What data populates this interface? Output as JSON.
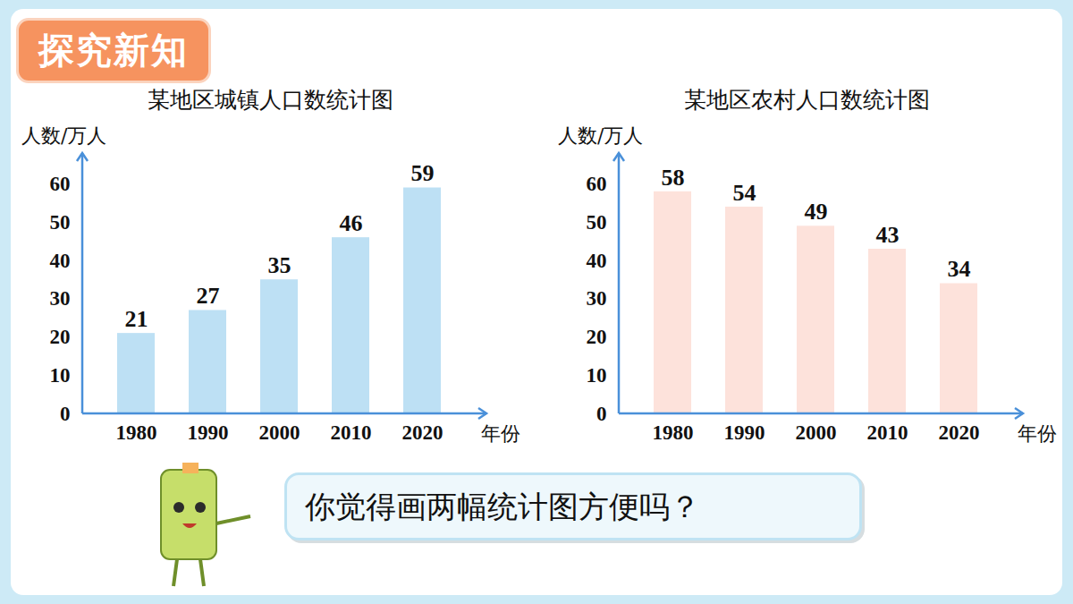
{
  "header": "探究新知",
  "speech": "你觉得画两幅统计图方便吗？",
  "chart_data": [
    {
      "type": "bar",
      "title": "某地区城镇人口数统计图",
      "y_label": "人数/万人",
      "x_label": "年份",
      "categories": [
        "1980",
        "1990",
        "2000",
        "2010",
        "2020"
      ],
      "values": [
        21,
        27,
        35,
        46,
        59
      ],
      "color": "#bde0f4",
      "ylim": [
        0,
        68
      ],
      "yticks": [
        0,
        10,
        20,
        30,
        40,
        50,
        60
      ],
      "grid": false,
      "data_labels": true
    },
    {
      "type": "bar",
      "title": "某地区农村人口数统计图",
      "y_label": "人数/万人",
      "x_label": "年份",
      "categories": [
        "1980",
        "1990",
        "2000",
        "2010",
        "2020"
      ],
      "values": [
        58,
        54,
        49,
        43,
        34
      ],
      "color": "#fde2db",
      "ylim": [
        0,
        68
      ],
      "yticks": [
        0,
        10,
        20,
        30,
        40,
        50,
        60
      ],
      "grid": false,
      "data_labels": true
    }
  ]
}
